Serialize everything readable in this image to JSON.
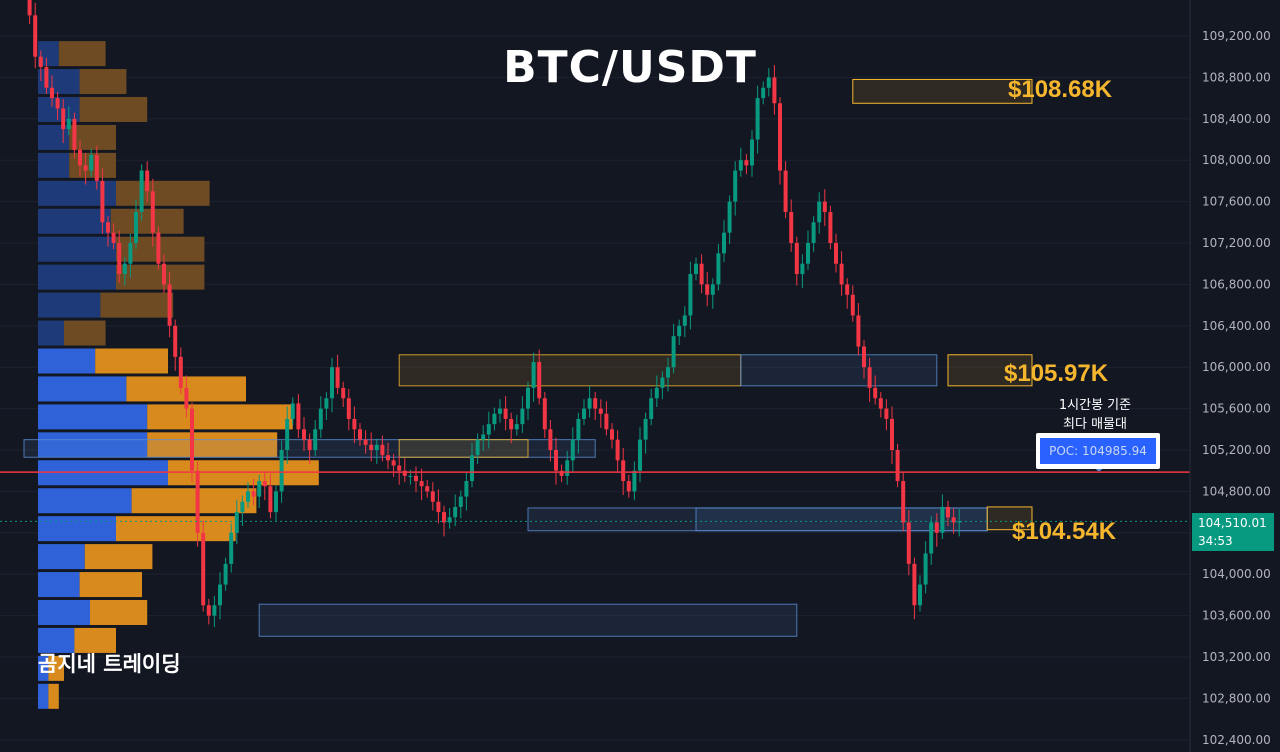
{
  "chart_data": {
    "type": "candlestick",
    "title": "BTC/USDT",
    "ylim": [
      102300,
      109500
    ],
    "y_ticks": [
      "109,200.00",
      "108,800.00",
      "108,400.00",
      "108,000.00",
      "107,600.00",
      "107,200.00",
      "106,800.00",
      "106,400.00",
      "106,000.00",
      "105,600.00",
      "105,200.00",
      "104,800.00",
      "104,400.00",
      "104,000.00",
      "103,600.00",
      "103,200.00",
      "102,800.00",
      "102,400.00"
    ],
    "y_tick_values": [
      109200,
      108800,
      108400,
      108000,
      107600,
      107200,
      106800,
      106400,
      106000,
      105600,
      105200,
      104800,
      104400,
      104000,
      103600,
      103200,
      102800,
      102400
    ],
    "current_price": {
      "value": 104510.01,
      "label": "104,510.01",
      "countdown": "34:53",
      "color": "#089981"
    },
    "poc": {
      "value": 104985.94,
      "label": "POC: 104985.94",
      "note_line1": "1시간봉 기준",
      "note_line2": "최다 매물대",
      "line_color": "#f23645"
    },
    "levels": [
      {
        "label": "$108.68K",
        "low": 108550,
        "high": 108780,
        "from_bar": 148,
        "to_bar": 180,
        "color": "#f5b62e"
      },
      {
        "label": "$105.97K",
        "low": 105820,
        "high": 106120,
        "from_bar": 165,
        "to_bar": 180,
        "color": "#f5b62e"
      },
      {
        "label": "$104.54K",
        "low": 104430,
        "high": 104650,
        "from_bar": 172,
        "to_bar": 180,
        "color": "#f5b62e"
      }
    ],
    "zones": [
      {
        "low": 105820,
        "high": 106120,
        "from_bar": 67,
        "to_bar": 128,
        "kind": "supply"
      },
      {
        "low": 105820,
        "high": 106120,
        "from_bar": 128,
        "to_bar": 163,
        "kind": "demand"
      },
      {
        "low": 105130,
        "high": 105300,
        "from_bar": 0,
        "to_bar": 102,
        "kind": "demand"
      },
      {
        "low": 105130,
        "high": 105300,
        "from_bar": 67,
        "to_bar": 90,
        "kind": "supply"
      },
      {
        "low": 104420,
        "high": 104640,
        "from_bar": 90,
        "to_bar": 172,
        "kind": "demand"
      },
      {
        "low": 104420,
        "high": 104640,
        "from_bar": 120,
        "to_bar": 172,
        "kind": "demand"
      },
      {
        "low": 103400,
        "high": 103710,
        "from_bar": 42,
        "to_bar": 138,
        "kind": "demand"
      }
    ],
    "volume_profile": [
      {
        "price": 109030,
        "buy": 4,
        "sell": 9
      },
      {
        "price": 108760,
        "buy": 8,
        "sell": 9
      },
      {
        "price": 108490,
        "buy": 8,
        "sell": 13
      },
      {
        "price": 108220,
        "buy": 6,
        "sell": 9
      },
      {
        "price": 107950,
        "buy": 6,
        "sell": 9
      },
      {
        "price": 107680,
        "buy": 15,
        "sell": 18
      },
      {
        "price": 107410,
        "buy": 14,
        "sell": 14
      },
      {
        "price": 107140,
        "buy": 15,
        "sell": 17
      },
      {
        "price": 106870,
        "buy": 15,
        "sell": 17
      },
      {
        "price": 106600,
        "buy": 12,
        "sell": 14
      },
      {
        "price": 106330,
        "buy": 5,
        "sell": 8
      },
      {
        "price": 106060,
        "buy": 11,
        "sell": 14
      },
      {
        "price": 105790,
        "buy": 17,
        "sell": 23
      },
      {
        "price": 105520,
        "buy": 21,
        "sell": 28
      },
      {
        "price": 105250,
        "buy": 21,
        "sell": 25
      },
      {
        "price": 104980,
        "buy": 25,
        "sell": 29
      },
      {
        "price": 104710,
        "buy": 18,
        "sell": 24
      },
      {
        "price": 104440,
        "buy": 15,
        "sell": 23
      },
      {
        "price": 104170,
        "buy": 9,
        "sell": 13
      },
      {
        "price": 103900,
        "buy": 8,
        "sell": 12
      },
      {
        "price": 103630,
        "buy": 10,
        "sell": 11
      },
      {
        "price": 103360,
        "buy": 7,
        "sell": 8
      },
      {
        "price": 103090,
        "buy": 2,
        "sell": 3
      },
      {
        "price": 102820,
        "buy": 2,
        "sell": 2
      }
    ],
    "closes": [
      109700,
      109400,
      109000,
      108900,
      108700,
      108600,
      108500,
      108300,
      108400,
      108100,
      107950,
      107900,
      108050,
      107800,
      107400,
      107300,
      107200,
      106900,
      107000,
      107200,
      107500,
      107900,
      107700,
      107300,
      107000,
      106800,
      106400,
      106100,
      105800,
      105600,
      105000,
      104400,
      103700,
      103600,
      103700,
      103900,
      104100,
      104400,
      104600,
      104700,
      104800,
      104750,
      104900,
      104850,
      104600,
      104800,
      105200,
      105500,
      105650,
      105400,
      105300,
      105200,
      105400,
      105600,
      105700,
      106000,
      105800,
      105700,
      105500,
      105400,
      105300,
      105250,
      105200,
      105250,
      105150,
      105100,
      105050,
      105000,
      104950,
      104950,
      104900,
      104850,
      104800,
      104700,
      104600,
      104500,
      104550,
      104650,
      104750,
      104900,
      105150,
      105300,
      105350,
      105450,
      105550,
      105600,
      105500,
      105400,
      105450,
      105600,
      105800,
      106050,
      105700,
      105400,
      105200,
      105000,
      104950,
      105100,
      105300,
      105500,
      105600,
      105700,
      105600,
      105550,
      105400,
      105300,
      105100,
      104900,
      104800,
      105000,
      105300,
      105500,
      105700,
      105800,
      105900,
      106000,
      106300,
      106400,
      106500,
      106900,
      107000,
      106800,
      106700,
      106800,
      107100,
      107300,
      107600,
      107900,
      108000,
      107950,
      108200,
      108600,
      108700,
      108800,
      108550,
      107900,
      107500,
      107200,
      106900,
      107000,
      107200,
      107400,
      107600,
      107500,
      107200,
      107000,
      106800,
      106700,
      106500,
      106200,
      106000,
      105800,
      105700,
      105600,
      105500,
      105200,
      104900,
      104500,
      104100,
      103700,
      103900,
      104200,
      104500,
      104400,
      104650,
      104550,
      104500,
      104510
    ],
    "opens": [
      109800,
      109700,
      109400,
      109000,
      108900,
      108700,
      108600,
      108500,
      108300,
      108400,
      108100,
      107950,
      107900,
      108050,
      107800,
      107400,
      107300,
      107200,
      106900,
      107000,
      107200,
      107500,
      107900,
      107700,
      107300,
      107000,
      106800,
      106400,
      106100,
      105800,
      105600,
      105000,
      104400,
      103700,
      103600,
      103700,
      103900,
      104100,
      104400,
      104600,
      104700,
      104800,
      104750,
      104900,
      104850,
      104600,
      104800,
      105200,
      105500,
      105650,
      105400,
      105300,
      105200,
      105400,
      105600,
      105700,
      106000,
      105800,
      105700,
      105500,
      105400,
      105300,
      105250,
      105200,
      105250,
      105150,
      105100,
      105050,
      105000,
      104950,
      104950,
      104900,
      104850,
      104800,
      104700,
      104600,
      104500,
      104550,
      104650,
      104750,
      104900,
      105150,
      105300,
      105350,
      105450,
      105550,
      105600,
      105500,
      105400,
      105450,
      105600,
      105800,
      106050,
      105700,
      105400,
      105200,
      105000,
      104950,
      105100,
      105300,
      105500,
      105600,
      105700,
      105600,
      105550,
      105400,
      105300,
      105100,
      104900,
      104800,
      105000,
      105300,
      105500,
      105700,
      105800,
      105900,
      106000,
      106300,
      106400,
      106500,
      106900,
      107000,
      106800,
      106700,
      106800,
      107100,
      107300,
      107600,
      107900,
      108000,
      107950,
      108200,
      108600,
      108700,
      108800,
      108550,
      107900,
      107500,
      107200,
      106900,
      107000,
      107200,
      107400,
      107600,
      107500,
      107200,
      107000,
      106800,
      106700,
      106500,
      106200,
      106000,
      105800,
      105700,
      105600,
      105500,
      105200,
      104900,
      104500,
      104100,
      103700,
      103900,
      104200,
      104500,
      104400,
      104650,
      104550,
      104500
    ],
    "colors": {
      "up": "#089981",
      "down": "#f23645",
      "grid": "#1e2230",
      "axis_text": "#b2b5be",
      "zone_supply": "#f5b62e",
      "zone_demand": "#5b8fd6"
    }
  },
  "watermark": "곰지네 트레이딩"
}
